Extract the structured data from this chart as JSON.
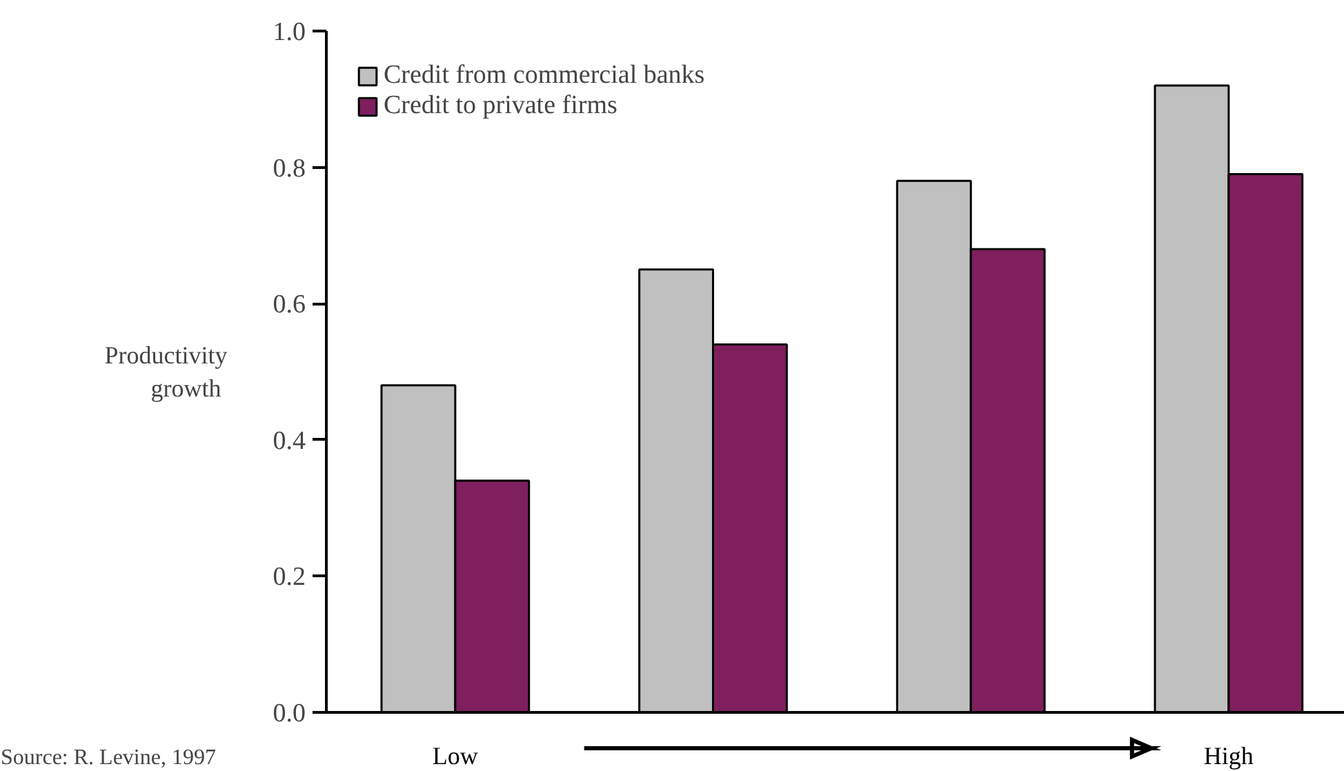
{
  "chart_data": {
    "type": "bar",
    "ylabel": "Productivity\n growth",
    "categories": [
      "Low",
      null,
      null,
      "High"
    ],
    "series": [
      {
        "name": "Credit from commercial banks",
        "color": "#c0c0c0",
        "values": [
          0.48,
          0.65,
          0.78,
          0.92
        ]
      },
      {
        "name": "Credit to private firms",
        "color": "#7f1f5e",
        "values": [
          0.34,
          0.54,
          0.68,
          0.79
        ]
      }
    ],
    "ylim": [
      0,
      1
    ],
    "yticks": [
      {
        "value": 0,
        "label": "0.0"
      },
      0.2,
      0.4,
      0.6,
      0.8,
      {
        "value": 1,
        "label": "1.0"
      }
    ],
    "grid": false,
    "legend": "top left",
    "annotations": [
      "Source: R. Levine, 1997"
    ]
  }
}
